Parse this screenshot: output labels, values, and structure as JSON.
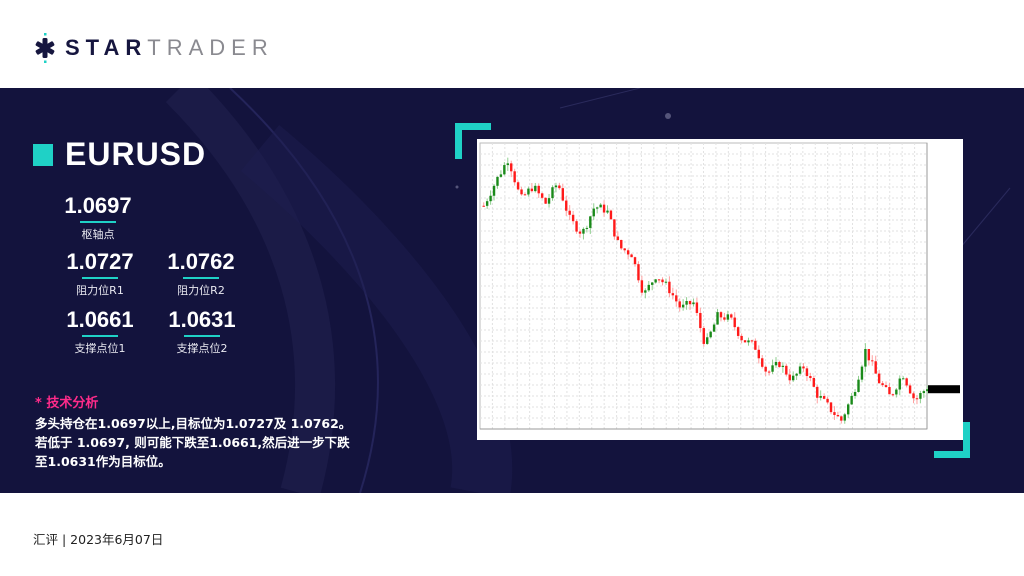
{
  "brand": {
    "name_bold": "STAR",
    "name_light": "TRADER",
    "colors": {
      "navy": "#16163f",
      "teal": "#1fd1c6",
      "gray": "#8a8a90"
    }
  },
  "instrument": {
    "symbol": "EURUSD"
  },
  "levels": {
    "pivot": {
      "value": "1.0697",
      "label": "枢轴点"
    },
    "r1": {
      "value": "1.0727",
      "label": "阻力位R1"
    },
    "r2": {
      "value": "1.0762",
      "label": "阻力位R2"
    },
    "s1": {
      "value": "1.0661",
      "label": "支撑点位1"
    },
    "s2": {
      "value": "1.0631",
      "label": "支撑点位2"
    }
  },
  "analysis": {
    "title": "* 技术分析",
    "lines": [
      "多头持仓在1.0697以上,目标位为1.0727及 1.0762。",
      "若低于 1.0697, 则可能下跌至1.0661,然后进一步下跌",
      "至1.0631作为目标位。"
    ]
  },
  "footer": {
    "text": "汇评 | 2023年6月07日"
  },
  "chart_data": {
    "type": "candlestick",
    "symbol": "EURUSD",
    "timeframe": "H4",
    "grid": true,
    "colors": {
      "up": "#1a8a1a",
      "down": "#ff1a1a"
    },
    "close_path": [
      1.1071,
      1.112,
      1.1165,
      1.1083,
      1.111,
      1.1075,
      1.1117,
      1.1043,
      1.1016,
      1.107,
      1.1062,
      1.0989,
      1.0976,
      1.0895,
      1.0935,
      1.0908,
      1.0868,
      1.0881,
      1.0794,
      1.0854,
      1.0848,
      1.0807,
      1.0794,
      1.074,
      1.076,
      1.0727,
      1.0754,
      1.07,
      1.0673,
      1.0646,
      1.07,
      1.0787,
      1.0727,
      1.0693,
      1.074,
      1.0686,
      1.0713
    ],
    "ylim": [
      1.063,
      1.1195
    ]
  }
}
